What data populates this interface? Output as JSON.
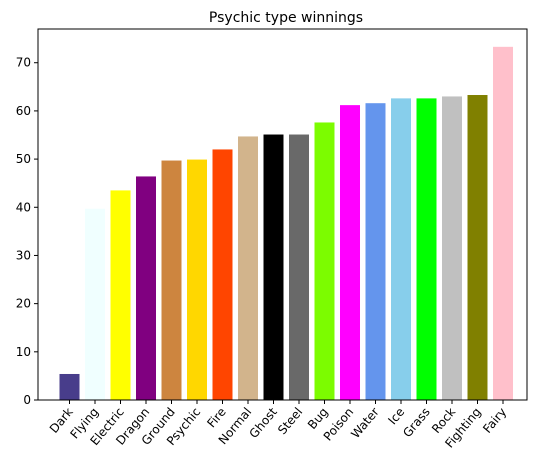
{
  "chart_data": {
    "type": "bar",
    "title": "Psychic type winnings",
    "xlabel": "",
    "ylabel": "",
    "ylim": [
      0,
      77
    ],
    "yticks": [
      0,
      10,
      20,
      30,
      40,
      50,
      60,
      70
    ],
    "categories": [
      "Dark",
      "Flying",
      "Electric",
      "Dragon",
      "Ground",
      "Psychic",
      "Fire",
      "Normal",
      "Ghost",
      "Steel",
      "Bug",
      "Poison",
      "Water",
      "Ice",
      "Grass",
      "Rock",
      "Fighting",
      "Fairy"
    ],
    "values": [
      5.4,
      39.7,
      43.5,
      46.4,
      49.7,
      49.9,
      52.0,
      54.7,
      55.1,
      55.1,
      57.6,
      61.2,
      61.6,
      62.6,
      62.6,
      63.0,
      63.3,
      73.3
    ],
    "colors": [
      "#483D8B",
      "#F0FFFF",
      "#FFFF00",
      "#800080",
      "#CD853F",
      "#FFD700",
      "#FF4500",
      "#D2B48C",
      "#000000",
      "#696969",
      "#7CFC00",
      "#FF00FF",
      "#6495ED",
      "#87CEEB",
      "#00FF00",
      "#C0C0C0",
      "#808000",
      "#FFC0CB"
    ],
    "grid": false,
    "legend": "none"
  }
}
